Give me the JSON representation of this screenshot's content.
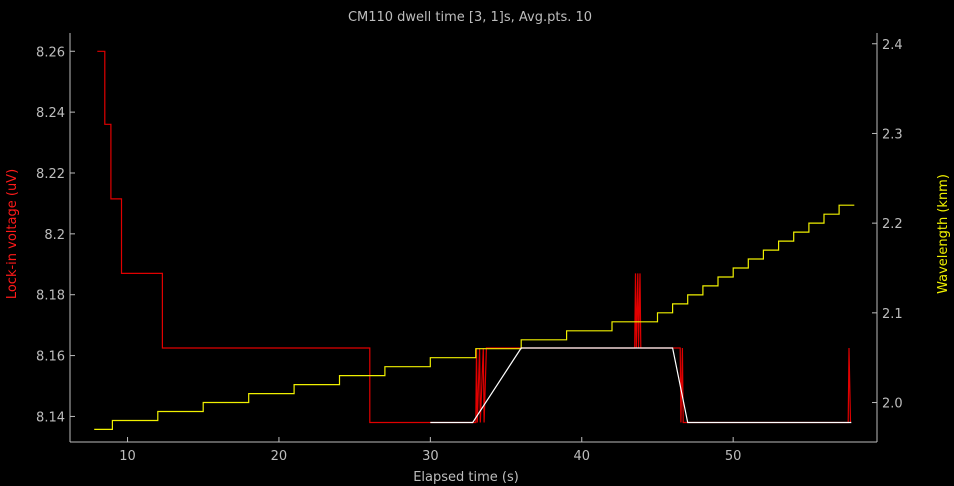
{
  "chart_data": {
    "type": "line",
    "title": "CM110 dwell time [3, 1]s, Avg.pts. 10",
    "xlabel": "Elapsed time (s)",
    "ylabel_left": "Lock-in voltage (uV)",
    "ylabel_right": "Wavelength (knm)",
    "xlim": [
      6.2,
      59.5
    ],
    "ylim_left": [
      8.1316,
      8.266
    ],
    "ylim_right": [
      1.956,
      2.412
    ],
    "x_ticks": [
      10,
      20,
      30,
      40,
      50
    ],
    "y_left_ticks": [
      8.14,
      8.16,
      8.18,
      8.2,
      8.22,
      8.24,
      8.26
    ],
    "y_left_tick_labels": [
      "8.14",
      "8.16",
      "8.18",
      "8.2",
      "8.22",
      "8.24",
      "8.26"
    ],
    "y_right_ticks": [
      2.0,
      2.1,
      2.2,
      2.3,
      2.4
    ],
    "y_right_tick_labels": [
      "2.0",
      "2.1",
      "2.2",
      "2.3",
      "2.4"
    ],
    "grid": false,
    "colors": {
      "background": "#000000",
      "axes": "#bdbdbd",
      "lockin": "#e00000",
      "wavelength": "#f0f000",
      "average": "#ffffff"
    },
    "series": [
      {
        "axis": "left",
        "color": "#e00000",
        "points": [
          [
            8.0,
            8.26
          ],
          [
            8.5,
            8.26
          ],
          [
            8.5,
            8.236
          ],
          [
            8.9,
            8.236
          ],
          [
            8.9,
            8.2115
          ],
          [
            9.6,
            8.2115
          ],
          [
            9.6,
            8.187
          ],
          [
            12.3,
            8.187
          ],
          [
            12.3,
            8.1625
          ],
          [
            26.0,
            8.1625
          ],
          [
            26.0,
            8.138
          ],
          [
            33.0,
            8.138
          ],
          [
            33.05,
            8.1625
          ],
          [
            33.1,
            8.138
          ],
          [
            33.25,
            8.1625
          ],
          [
            33.3,
            8.138
          ],
          [
            33.5,
            8.1625
          ],
          [
            33.55,
            8.138
          ],
          [
            33.7,
            8.1625
          ],
          [
            43.5,
            8.1625
          ],
          [
            43.55,
            8.187
          ],
          [
            43.6,
            8.1625
          ],
          [
            43.7,
            8.187
          ],
          [
            43.75,
            8.1625
          ],
          [
            43.85,
            8.187
          ],
          [
            43.9,
            8.1625
          ],
          [
            46.5,
            8.1625
          ],
          [
            46.55,
            8.138
          ],
          [
            46.65,
            8.1625
          ],
          [
            46.7,
            8.138
          ],
          [
            57.6,
            8.138
          ],
          [
            57.65,
            8.1625
          ],
          [
            57.75,
            8.138
          ]
        ]
      },
      {
        "axis": "right",
        "color": "#f0f000",
        "points": [
          [
            7.8,
            1.97
          ],
          [
            9.0,
            1.97
          ],
          [
            9.0,
            1.98
          ],
          [
            12.0,
            1.98
          ],
          [
            12.0,
            1.99
          ],
          [
            15.0,
            1.99
          ],
          [
            15.0,
            2.0
          ],
          [
            18.0,
            2.0
          ],
          [
            18.0,
            2.01
          ],
          [
            21.0,
            2.01
          ],
          [
            21.0,
            2.02
          ],
          [
            24.0,
            2.02
          ],
          [
            24.0,
            2.03
          ],
          [
            27.0,
            2.03
          ],
          [
            27.0,
            2.04
          ],
          [
            30.0,
            2.04
          ],
          [
            30.0,
            2.05
          ],
          [
            33.0,
            2.05
          ],
          [
            33.0,
            2.06
          ],
          [
            36.0,
            2.06
          ],
          [
            36.0,
            2.07
          ],
          [
            39.0,
            2.07
          ],
          [
            39.0,
            2.08
          ],
          [
            42.0,
            2.08
          ],
          [
            42.0,
            2.09
          ],
          [
            45.0,
            2.09
          ],
          [
            45.0,
            2.1
          ],
          [
            46.0,
            2.1
          ],
          [
            46.0,
            2.11
          ],
          [
            47.0,
            2.11
          ],
          [
            47.0,
            2.12
          ],
          [
            48.0,
            2.12
          ],
          [
            48.0,
            2.13
          ],
          [
            49.0,
            2.13
          ],
          [
            49.0,
            2.14
          ],
          [
            50.0,
            2.14
          ],
          [
            50.0,
            2.15
          ],
          [
            51.0,
            2.15
          ],
          [
            51.0,
            2.16
          ],
          [
            52.0,
            2.16
          ],
          [
            52.0,
            2.17
          ],
          [
            53.0,
            2.17
          ],
          [
            53.0,
            2.18
          ],
          [
            54.0,
            2.18
          ],
          [
            54.0,
            2.19
          ],
          [
            55.0,
            2.19
          ],
          [
            55.0,
            2.2
          ],
          [
            56.0,
            2.2
          ],
          [
            56.0,
            2.21
          ],
          [
            57.0,
            2.21
          ],
          [
            57.0,
            2.22
          ],
          [
            58.0,
            2.22
          ]
        ]
      },
      {
        "axis": "left",
        "color": "#ffffff",
        "points": [
          [
            30.0,
            8.138
          ],
          [
            32.8,
            8.138
          ],
          [
            36.0,
            8.1625
          ],
          [
            46.0,
            8.1625
          ],
          [
            47.0,
            8.138
          ],
          [
            57.8,
            8.138
          ]
        ]
      }
    ]
  }
}
